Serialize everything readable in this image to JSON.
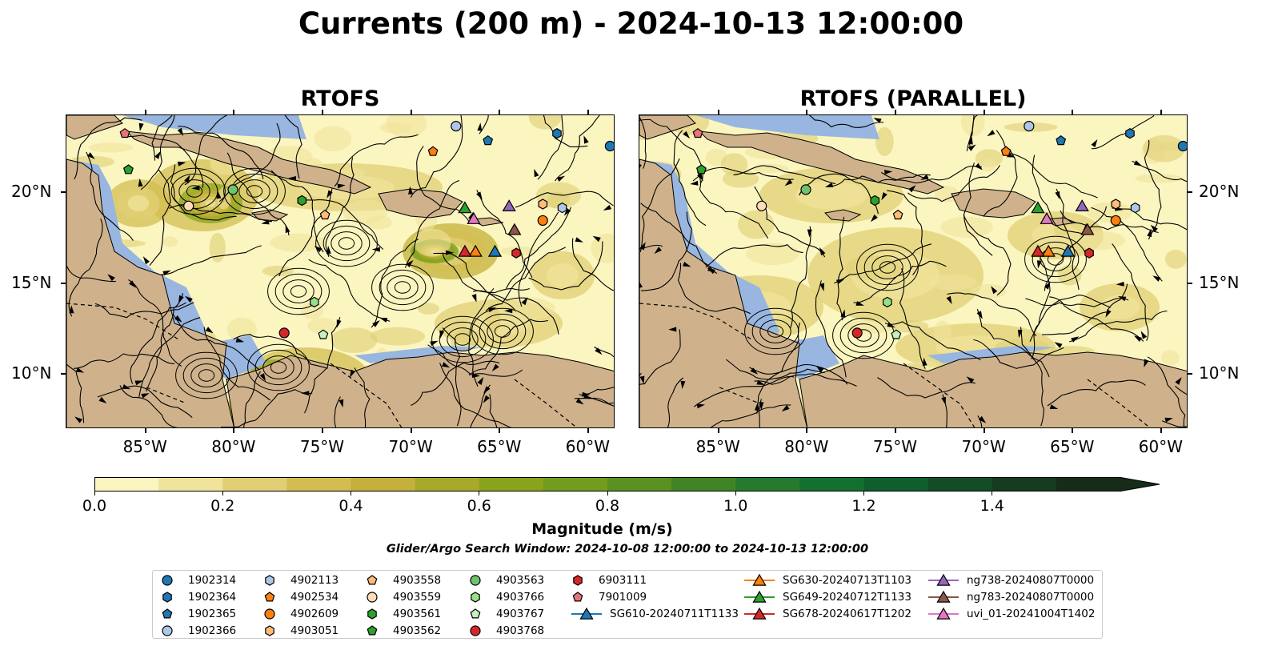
{
  "title": "Currents (200 m) - 2024-10-13 12:00:00",
  "panels": [
    {
      "title": "RTOFS"
    },
    {
      "title": "RTOFS (PARALLEL)"
    }
  ],
  "axes": {
    "lon_ticks": [
      "85°W",
      "80°W",
      "75°W",
      "70°W",
      "65°W",
      "60°W"
    ],
    "lat_ticks": [
      "20°N",
      "15°N",
      "10°N"
    ]
  },
  "colorbar": {
    "label": "Magnitude (m/s)",
    "ticks": [
      "0.0",
      "0.2",
      "0.4",
      "0.6",
      "0.8",
      "1.0",
      "1.2",
      "1.4"
    ],
    "range": [
      0.0,
      1.6
    ],
    "extend": "max",
    "colors": [
      "#fbf5c0",
      "#f0e39b",
      "#e0cf74",
      "#d3bd52",
      "#c4b03a",
      "#a6a92a",
      "#8aa31c",
      "#719c1d",
      "#5a9121",
      "#3f8526",
      "#257a2d",
      "#147031",
      "#0e5f2c",
      "#124d26",
      "#153c20",
      "#172b19"
    ]
  },
  "search_window": "Glider/Argo Search Window: 2024-10-08 12:00:00 to 2024-10-13 12:00:00",
  "colors": {
    "ocean": "#98b6df",
    "land": "#cfb28b"
  },
  "legend": [
    {
      "label": "1902314",
      "marker": "circle",
      "color": "#1f77b4"
    },
    {
      "label": "1902364",
      "marker": "hexagon",
      "color": "#1f77b4"
    },
    {
      "label": "1902365",
      "marker": "pentagon",
      "color": "#1f77b4"
    },
    {
      "label": "1902366",
      "marker": "circle",
      "color": "#aec7e8"
    },
    {
      "label": "4902113",
      "marker": "hexagon",
      "color": "#aec7e8"
    },
    {
      "label": "4902534",
      "marker": "pentagon",
      "color": "#ff7f0e"
    },
    {
      "label": "4902609",
      "marker": "circle",
      "color": "#ff7f0e"
    },
    {
      "label": "4903051",
      "marker": "hexagon",
      "color": "#ffbb78"
    },
    {
      "label": "4903558",
      "marker": "pentagon",
      "color": "#ffbb78"
    },
    {
      "label": "4903559",
      "marker": "circle",
      "color": "#ffdcb8"
    },
    {
      "label": "4903561",
      "marker": "hexagon",
      "color": "#2ca02c"
    },
    {
      "label": "4903562",
      "marker": "pentagon",
      "color": "#2ca02c"
    },
    {
      "label": "4903563",
      "marker": "circle",
      "color": "#6fc36f"
    },
    {
      "label": "4903766",
      "marker": "hexagon",
      "color": "#98df8a"
    },
    {
      "label": "4903767",
      "marker": "pentagon",
      "color": "#c6f0bc"
    },
    {
      "label": "4903768",
      "marker": "circle",
      "color": "#d62728"
    },
    {
      "label": "6903111",
      "marker": "hexagon",
      "color": "#d62728"
    },
    {
      "label": "7901009",
      "marker": "pentagon",
      "color": "#e8737a"
    },
    {
      "label": "SG610-20240711T1133",
      "marker": "triangle",
      "color": "#1f77b4"
    },
    {
      "label": "SG630-20240713T1103",
      "marker": "triangle",
      "color": "#ff7f0e"
    },
    {
      "label": "SG649-20240712T1133",
      "marker": "triangle",
      "color": "#2ca02c"
    },
    {
      "label": "SG678-20240617T1202",
      "marker": "triangle",
      "color": "#d62728"
    },
    {
      "label": "ng738-20240807T0000",
      "marker": "triangle",
      "color": "#9467bd"
    },
    {
      "label": "ng783-20240807T0000",
      "marker": "triangle",
      "color": "#8c564b"
    },
    {
      "label": "uvi_01-20241004T1402",
      "marker": "triangle",
      "color": "#e377c2"
    }
  ],
  "platforms": [
    {
      "id": "1902314",
      "lon": -58.8,
      "lat": 22.6
    },
    {
      "id": "1902364",
      "lon": -61.8,
      "lat": 23.3
    },
    {
      "id": "1902365",
      "lon": -65.7,
      "lat": 22.9
    },
    {
      "id": "1902366",
      "lon": -67.5,
      "lat": 23.7
    },
    {
      "id": "4902113",
      "lon": -61.5,
      "lat": 19.2
    },
    {
      "id": "4902534",
      "lon": -68.8,
      "lat": 22.3
    },
    {
      "id": "4902609",
      "lon": -62.6,
      "lat": 18.5
    },
    {
      "id": "4903051",
      "lon": -62.6,
      "lat": 19.4
    },
    {
      "id": "4903558",
      "lon": -74.9,
      "lat": 18.8
    },
    {
      "id": "4903559",
      "lon": -82.6,
      "lat": 19.3
    },
    {
      "id": "4903561",
      "lon": -76.2,
      "lat": 19.6
    },
    {
      "id": "4903562",
      "lon": -86.0,
      "lat": 21.3
    },
    {
      "id": "4903563",
      "lon": -80.1,
      "lat": 20.2
    },
    {
      "id": "4903766",
      "lon": -75.5,
      "lat": 14.0
    },
    {
      "id": "4903767",
      "lon": -75.0,
      "lat": 12.2
    },
    {
      "id": "4903768",
      "lon": -77.2,
      "lat": 12.3
    },
    {
      "id": "6903111",
      "lon": -64.1,
      "lat": 16.7
    },
    {
      "id": "7901009",
      "lon": -86.2,
      "lat": 23.3
    },
    {
      "id": "SG610-20240711T1133",
      "lon": -65.3,
      "lat": 16.8
    },
    {
      "id": "SG630-20240713T1103",
      "lon": -66.4,
      "lat": 16.8
    },
    {
      "id": "SG649-20240712T1133",
      "lon": -67.0,
      "lat": 19.2
    },
    {
      "id": "SG678-20240617T1202",
      "lon": -67.0,
      "lat": 16.8
    },
    {
      "id": "ng738-20240807T0000",
      "lon": -64.5,
      "lat": 19.3
    },
    {
      "id": "ng783-20240807T0000",
      "lon": -64.2,
      "lat": 18.0
    },
    {
      "id": "uvi_01-20241004T1402",
      "lon": -66.5,
      "lat": 18.6
    }
  ],
  "map_extent": {
    "lon": [
      -89.5,
      -58.5
    ],
    "lat": [
      7,
      24.3
    ]
  }
}
